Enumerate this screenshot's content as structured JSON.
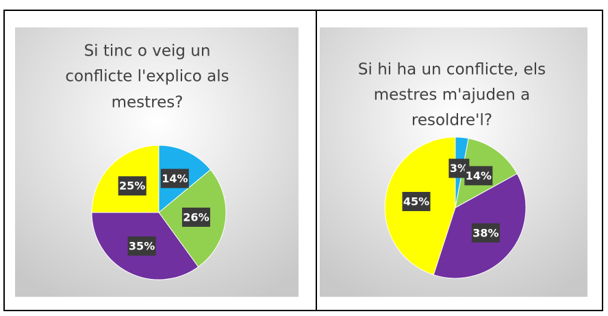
{
  "chart_data": [
    {
      "type": "pie",
      "title": [
        "Si tinc o veig un",
        "conflicte l'explico als",
        "mestres?"
      ],
      "values": [
        14,
        26,
        35,
        25
      ],
      "value_labels": [
        "14%",
        "26%",
        "35%",
        "25%"
      ],
      "colors": [
        "#1cb0ee",
        "#92d050",
        "#7030a0",
        "#ffff00"
      ]
    },
    {
      "type": "pie",
      "title": [
        "Si hi ha un conflicte, els",
        "mestres m'ajuden a",
        "resoldre'l?"
      ],
      "values": [
        3,
        14,
        38,
        45
      ],
      "value_labels": [
        "3%",
        "14%",
        "38%",
        "45%"
      ],
      "colors": [
        "#1cb0ee",
        "#92d050",
        "#7030a0",
        "#ffff00"
      ]
    }
  ]
}
